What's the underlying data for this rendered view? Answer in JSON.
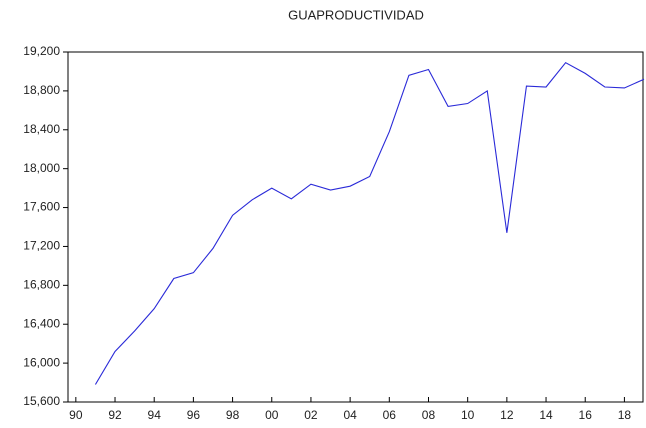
{
  "chart_data": {
    "type": "line",
    "title": "GUAPRODUCTIVIDAD",
    "x": [
      1991,
      1992,
      1993,
      1994,
      1995,
      1996,
      1997,
      1998,
      1999,
      2000,
      2001,
      2002,
      2003,
      2004,
      2005,
      2006,
      2007,
      2008,
      2009,
      2010,
      2011,
      2012,
      2013,
      2014,
      2015,
      2016,
      2017,
      2018,
      2019
    ],
    "series": [
      {
        "name": "GUAPRODUCTIVIDAD",
        "color": "#2a2ad8",
        "values": [
          15780,
          16120,
          16330,
          16560,
          16870,
          16930,
          17180,
          17520,
          17680,
          17800,
          17690,
          17840,
          17780,
          17820,
          17920,
          18380,
          18960,
          19020,
          18640,
          18670,
          18800,
          17340,
          18850,
          18840,
          19090,
          18980,
          18840,
          18830,
          18920
        ]
      }
    ],
    "xlim": [
      1989.6,
      2019.0
    ],
    "xticks": [
      {
        "value": 1990,
        "label": "90"
      },
      {
        "value": 1992,
        "label": "92"
      },
      {
        "value": 1994,
        "label": "94"
      },
      {
        "value": 1996,
        "label": "96"
      },
      {
        "value": 1998,
        "label": "98"
      },
      {
        "value": 2000,
        "label": "00"
      },
      {
        "value": 2002,
        "label": "02"
      },
      {
        "value": 2004,
        "label": "04"
      },
      {
        "value": 2006,
        "label": "06"
      },
      {
        "value": 2008,
        "label": "08"
      },
      {
        "value": 2010,
        "label": "10"
      },
      {
        "value": 2012,
        "label": "12"
      },
      {
        "value": 2014,
        "label": "14"
      },
      {
        "value": 2016,
        "label": "16"
      },
      {
        "value": 2018,
        "label": "18"
      }
    ],
    "ylim": [
      15600,
      19200
    ],
    "yticks": [
      {
        "value": 15600,
        "label": "15,600"
      },
      {
        "value": 16000,
        "label": "16,000"
      },
      {
        "value": 16400,
        "label": "16,400"
      },
      {
        "value": 16800,
        "label": "16,800"
      },
      {
        "value": 17200,
        "label": "17,200"
      },
      {
        "value": 17600,
        "label": "17,600"
      },
      {
        "value": 18000,
        "label": "18,000"
      },
      {
        "value": 18400,
        "label": "18,400"
      },
      {
        "value": 18800,
        "label": "18,800"
      },
      {
        "value": 19200,
        "label": "19,200"
      }
    ],
    "grid": false
  }
}
